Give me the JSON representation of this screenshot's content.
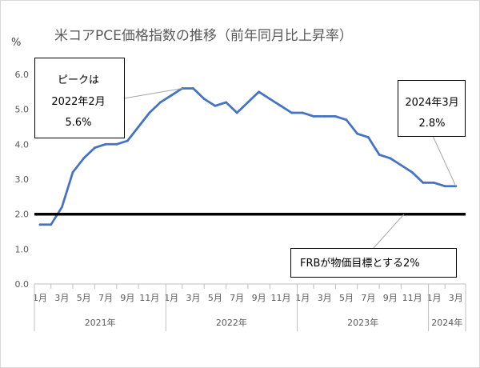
{
  "chart_data": {
    "type": "line",
    "title": "米コアPCE価格指数の推移（前年同月比上昇率）",
    "ylabel": "%",
    "ylim": [
      0,
      6
    ],
    "y_ticks": [
      "0.0",
      "1.0",
      "2.0",
      "3.0",
      "4.0",
      "5.0",
      "6.0"
    ],
    "grid": false,
    "x_groups": [
      {
        "label": "2021年",
        "tick_labels": [
          "1月",
          "3月",
          "5月",
          "7月",
          "9月",
          "11月"
        ],
        "values": [
          1.7,
          1.7,
          2.2,
          3.2,
          3.6,
          3.9,
          4.0,
          4.0,
          4.1,
          4.5,
          4.9,
          5.2
        ]
      },
      {
        "label": "2022年",
        "tick_labels": [
          "1月",
          "3月",
          "5月",
          "7月",
          "9月",
          "11月"
        ],
        "values": [
          5.4,
          5.6,
          5.6,
          5.3,
          5.1,
          5.2,
          4.9,
          5.2,
          5.5,
          5.3,
          5.1,
          4.9
        ]
      },
      {
        "label": "2023年",
        "tick_labels": [
          "1月",
          "3月",
          "5月",
          "7月",
          "9月",
          "11月"
        ],
        "values": [
          4.9,
          4.8,
          4.8,
          4.8,
          4.7,
          4.3,
          4.2,
          3.7,
          3.6,
          3.4,
          3.2,
          2.9
        ]
      },
      {
        "label": "2024年",
        "tick_labels": [
          "1月",
          "3月"
        ],
        "values": [
          2.9,
          2.8,
          2.8
        ]
      }
    ],
    "series_color": "#4472C4",
    "reference_line": {
      "y": 2.0,
      "color": "#000000"
    },
    "annotations": {
      "peak": [
        "ピークは",
        "2022年2月",
        "5.6%"
      ],
      "latest": [
        "2024年3月",
        "2.8%"
      ],
      "target": [
        "FRBが物価目標とする2%"
      ]
    }
  }
}
